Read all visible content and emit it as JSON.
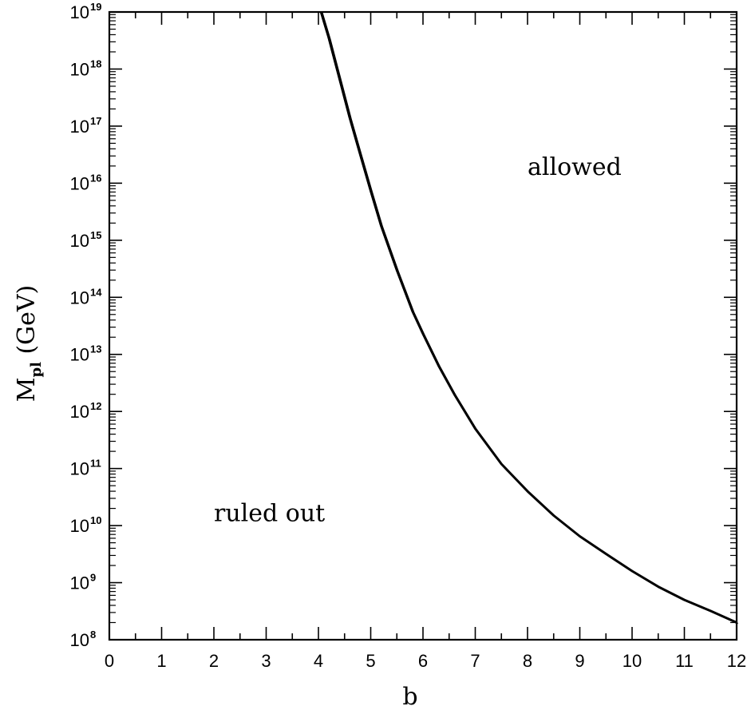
{
  "chart_data": {
    "type": "line",
    "title": "",
    "xlabel": "b",
    "ylabel": {
      "main": "M",
      "sub": "pl",
      "unit": " (GeV)"
    },
    "xlim": [
      0,
      12
    ],
    "ylim": [
      100000000.0,
      1e+19
    ],
    "yscale": "log",
    "grid": false,
    "x_ticks": [
      "0",
      "1",
      "2",
      "3",
      "4",
      "5",
      "6",
      "7",
      "8",
      "9",
      "10",
      "11",
      "12"
    ],
    "y_ticks": [
      {
        "base": "10",
        "exp": "8"
      },
      {
        "base": "10",
        "exp": "9"
      },
      {
        "base": "10",
        "exp": "10"
      },
      {
        "base": "10",
        "exp": "11"
      },
      {
        "base": "10",
        "exp": "12"
      },
      {
        "base": "10",
        "exp": "13"
      },
      {
        "base": "10",
        "exp": "14"
      },
      {
        "base": "10",
        "exp": "15"
      },
      {
        "base": "10",
        "exp": "16"
      },
      {
        "base": "10",
        "exp": "17"
      },
      {
        "base": "10",
        "exp": "18"
      },
      {
        "base": "10",
        "exp": "19"
      }
    ],
    "series": [
      {
        "x": [
          4.05,
          4.2,
          4.4,
          4.6,
          4.8,
          5.0,
          5.2,
          5.5,
          5.8,
          6.0,
          6.3,
          6.6,
          7.0,
          7.5,
          8.0,
          8.5,
          9.0,
          9.5,
          10.0,
          10.5,
          11.0,
          11.5,
          12.0
        ],
        "y": [
          1e+19,
          3.5e+18,
          7e+17,
          1.4e+17,
          3.2e+16,
          7400000000000000.0,
          1800000000000000.0,
          300000000000000.0,
          57000000000000.0,
          23000000000000.0,
          6300000000000.0,
          2000000000000.0,
          500000000000.0,
          120000000000.0,
          40000000000.0,
          15000000000.0,
          6500000000.0,
          3200000000.0,
          1600000000.0,
          850000000.0,
          500000000.0,
          320000000.0,
          200000000.0
        ]
      }
    ],
    "annotations": [
      {
        "text": "allowed",
        "x": 8.0,
        "y": 1.4e+16
      },
      {
        "text": "ruled out",
        "x": 2.0,
        "y": 12000000000.0
      }
    ]
  }
}
